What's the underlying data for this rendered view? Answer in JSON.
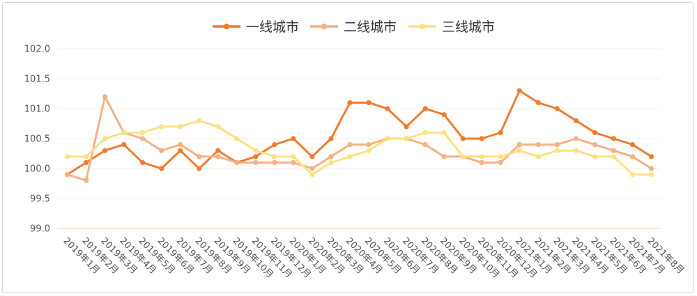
{
  "chart_data": {
    "type": "line",
    "title": "",
    "xlabel": "",
    "ylabel": "",
    "ylim": [
      99.0,
      102.0
    ],
    "yticks": [
      "99.0",
      "99.5",
      "100.0",
      "100.5",
      "101.0",
      "101.5",
      "102.0"
    ],
    "grid": true,
    "legend_position": "top-center",
    "categories": [
      "2019年1月",
      "2019年2月",
      "2019年3月",
      "2019年4月",
      "2019年5月",
      "2019年6月",
      "2019年7月",
      "2019年8月",
      "2019年9月",
      "2019年10月",
      "2019年11月",
      "2019年12月",
      "2020年1月",
      "2020年2月",
      "2020年3月",
      "2020年4月",
      "2020年5月",
      "2020年6月",
      "2020年7月",
      "2020年8月",
      "2020年9月",
      "2020年10月",
      "2020年11月",
      "2020年12月",
      "2021年1月",
      "2021年2月",
      "2021年3月",
      "2021年4月",
      "2021年5月",
      "2021年6月",
      "2021年7月",
      "2021年8月"
    ],
    "series": [
      {
        "name": "一线城市",
        "color": "#ED7D31",
        "values": [
          99.9,
          100.1,
          100.3,
          100.4,
          100.1,
          100.0,
          100.3,
          100.0,
          100.3,
          100.1,
          100.2,
          100.4,
          100.5,
          100.2,
          100.5,
          101.1,
          101.1,
          101.0,
          100.7,
          101.0,
          100.9,
          100.5,
          100.5,
          100.6,
          101.3,
          101.1,
          101.0,
          100.8,
          100.6,
          100.5,
          100.4,
          100.2
        ]
      },
      {
        "name": "二线城市",
        "color": "#F4B183",
        "values": [
          99.9,
          99.8,
          101.2,
          100.6,
          100.5,
          100.3,
          100.4,
          100.2,
          100.2,
          100.1,
          100.1,
          100.1,
          100.1,
          100.0,
          100.2,
          100.4,
          100.4,
          100.5,
          100.5,
          100.4,
          100.2,
          100.2,
          100.1,
          100.1,
          100.4,
          100.4,
          100.4,
          100.5,
          100.4,
          100.3,
          100.2,
          100.0
        ]
      },
      {
        "name": "三线城市",
        "color": "#FFE083",
        "values": [
          100.2,
          100.2,
          100.5,
          100.6,
          100.6,
          100.7,
          100.7,
          100.8,
          100.7,
          100.5,
          100.3,
          100.2,
          100.2,
          99.9,
          100.1,
          100.2,
          100.3,
          100.5,
          100.5,
          100.6,
          100.6,
          100.2,
          100.2,
          100.2,
          100.3,
          100.2,
          100.3,
          100.3,
          100.2,
          100.2,
          99.9,
          99.9
        ]
      }
    ]
  }
}
